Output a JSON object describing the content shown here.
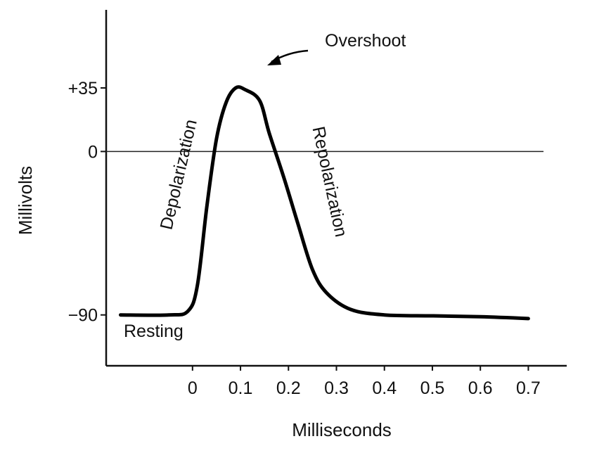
{
  "chart_data": {
    "type": "line",
    "title": "",
    "xlabel": "Milliseconds",
    "ylabel": "Millivolts",
    "x_ticks": [
      "0",
      "0.1",
      "0.2",
      "0.3",
      "0.4",
      "0.5",
      "0.6",
      "0.7"
    ],
    "y_ticks": [
      "+35",
      "0",
      "−90"
    ],
    "xlim": [
      -0.18,
      0.78
    ],
    "ylim": [
      -118,
      78
    ],
    "reference_line": {
      "y": 0
    },
    "grid": false,
    "series": [
      {
        "name": "",
        "color": "#000000",
        "x": [
          -0.15,
          -0.05,
          -0.01,
          0.01,
          0.03,
          0.05,
          0.07,
          0.09,
          0.11,
          0.14,
          0.16,
          0.19,
          0.22,
          0.25,
          0.28,
          0.33,
          0.4,
          0.5,
          0.6,
          0.7
        ],
        "y": [
          -90,
          -90,
          -88,
          -74,
          -30,
          7,
          27,
          35,
          34,
          28,
          10,
          -14,
          -40,
          -65,
          -78,
          -87,
          -90,
          -90.5,
          -91,
          -92
        ]
      }
    ],
    "annotations": [
      {
        "id": "overshoot",
        "text": "Overshoot"
      },
      {
        "id": "depolarization",
        "text": "Depolarization"
      },
      {
        "id": "repolarization",
        "text": "Repolarization"
      },
      {
        "id": "resting",
        "text": "Resting"
      }
    ]
  }
}
